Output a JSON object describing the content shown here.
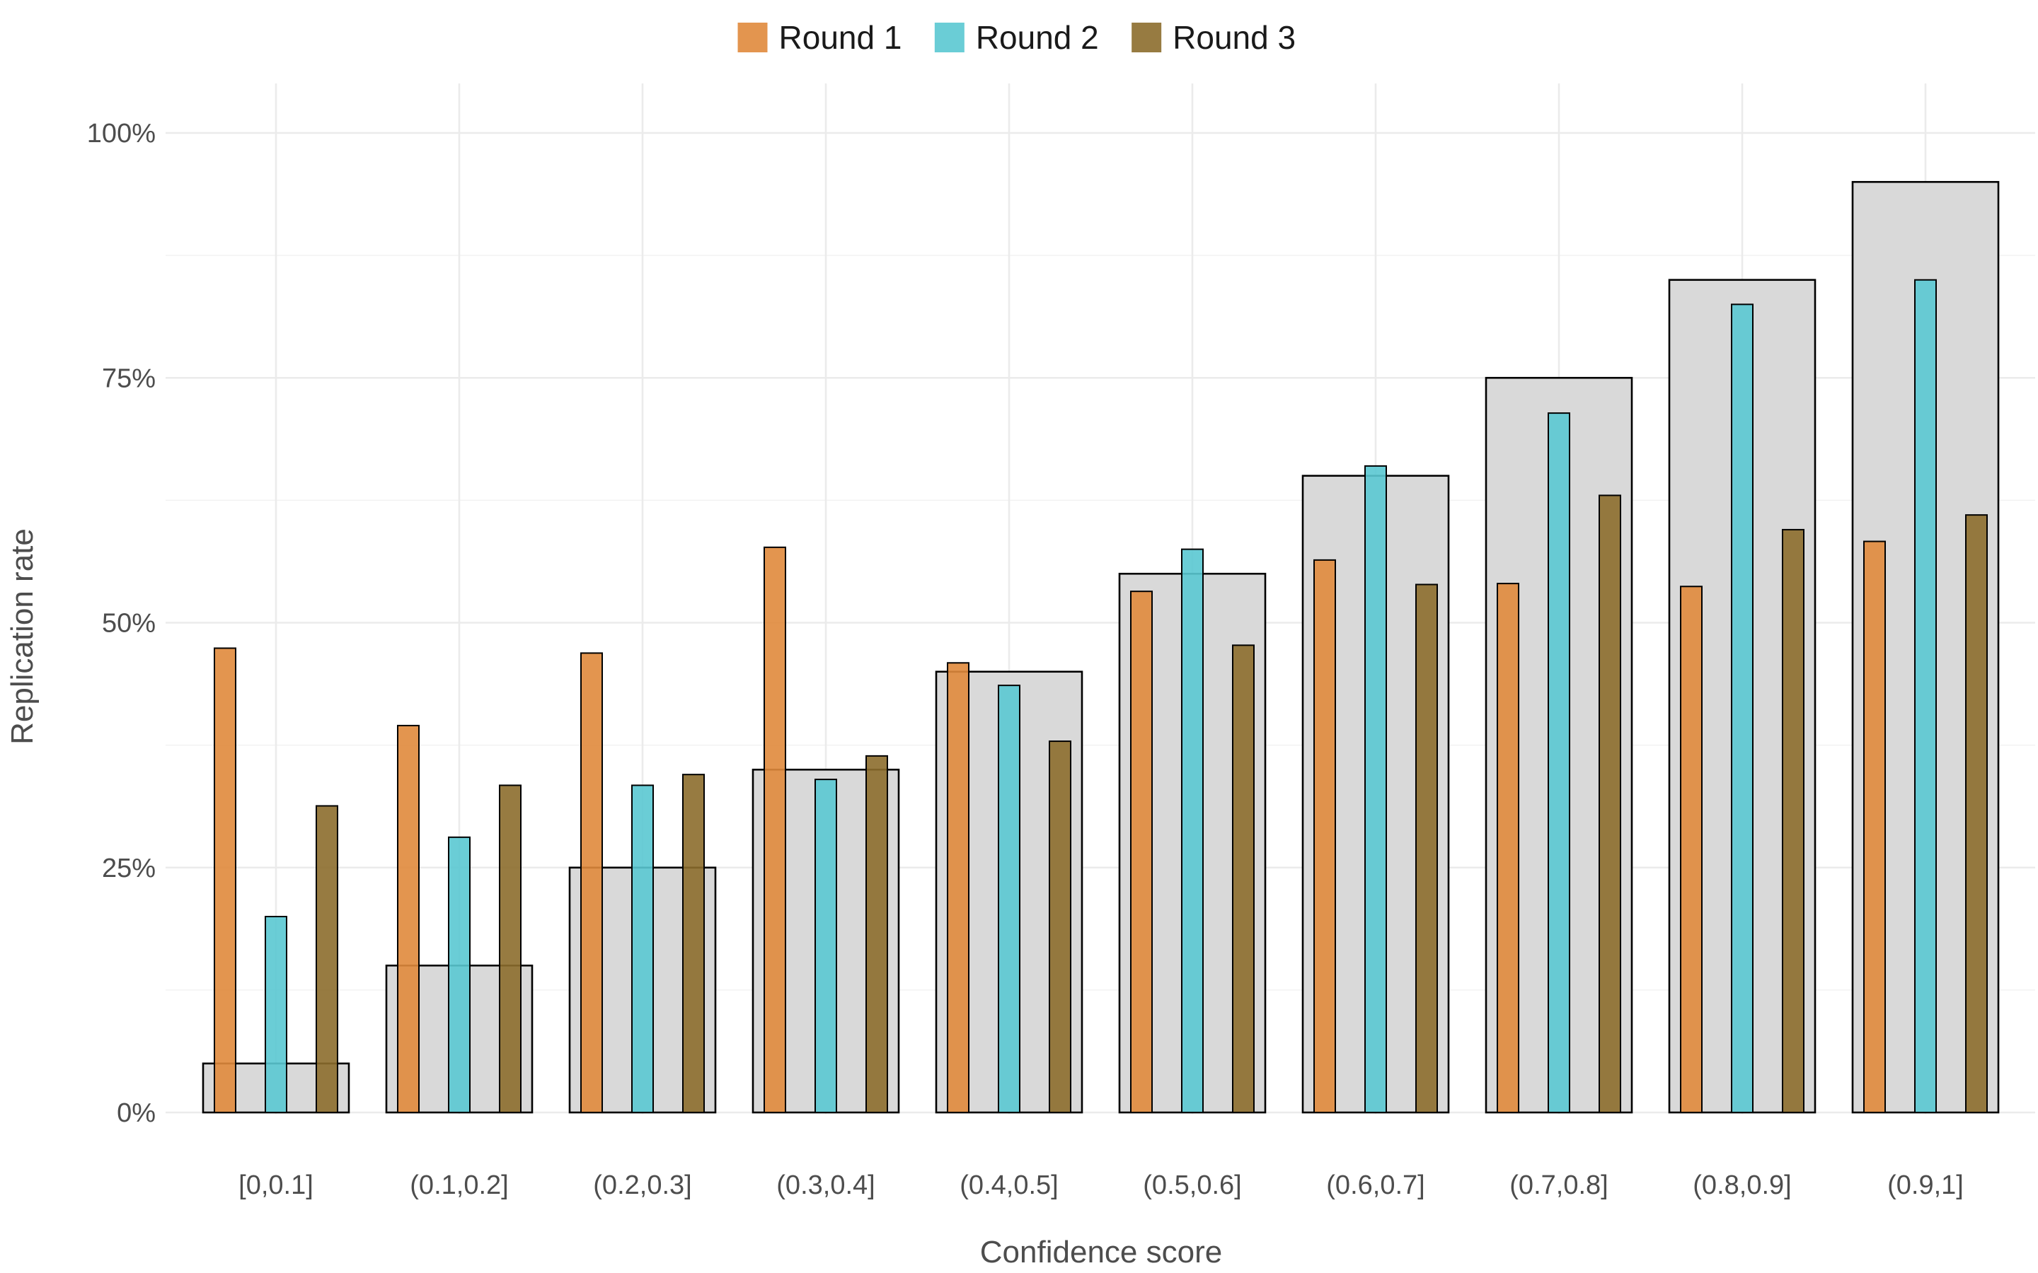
{
  "colors": {
    "round1": "#e08a3c",
    "round2": "#5ac8d1",
    "round3": "#8c6d2c",
    "expected_fill": "#d9d9d9",
    "expected_stroke": "#000000",
    "grid": "#ebebeb",
    "text": "#4d4d4d"
  },
  "chart_data": {
    "type": "bar",
    "xlabel": "Confidence score",
    "ylabel": "Replication rate",
    "ylim": [
      0,
      100
    ],
    "y_ticks": [
      0,
      25,
      50,
      75,
      100
    ],
    "y_tick_labels": [
      "0%",
      "25%",
      "50%",
      "75%",
      "100%"
    ],
    "grid": true,
    "legend_position": "top",
    "categories": [
      "[0,0.1]",
      "(0.1,0.2]",
      "(0.2,0.3]",
      "(0.3,0.4]",
      "(0.4,0.5]",
      "(0.5,0.6]",
      "(0.6,0.7]",
      "(0.7,0.8]",
      "(0.8,0.9]",
      "(0.9,1]"
    ],
    "expected": [
      5,
      15,
      25,
      35,
      45,
      55,
      65,
      75,
      85,
      95
    ],
    "series": [
      {
        "name": "Round 1",
        "color": "#e08a3c",
        "values": [
          47.4,
          39.5,
          46.9,
          57.7,
          45.9,
          53.2,
          56.4,
          54.0,
          53.7,
          58.3
        ]
      },
      {
        "name": "Round 2",
        "color": "#5ac8d1",
        "values": [
          20.0,
          28.1,
          33.4,
          34.0,
          43.6,
          57.5,
          66.0,
          71.4,
          82.5,
          85.0
        ]
      },
      {
        "name": "Round 3",
        "color": "#8c6d2c",
        "values": [
          31.3,
          33.4,
          34.5,
          36.4,
          37.9,
          47.7,
          53.9,
          63.0,
          59.5,
          61.0
        ]
      }
    ]
  }
}
